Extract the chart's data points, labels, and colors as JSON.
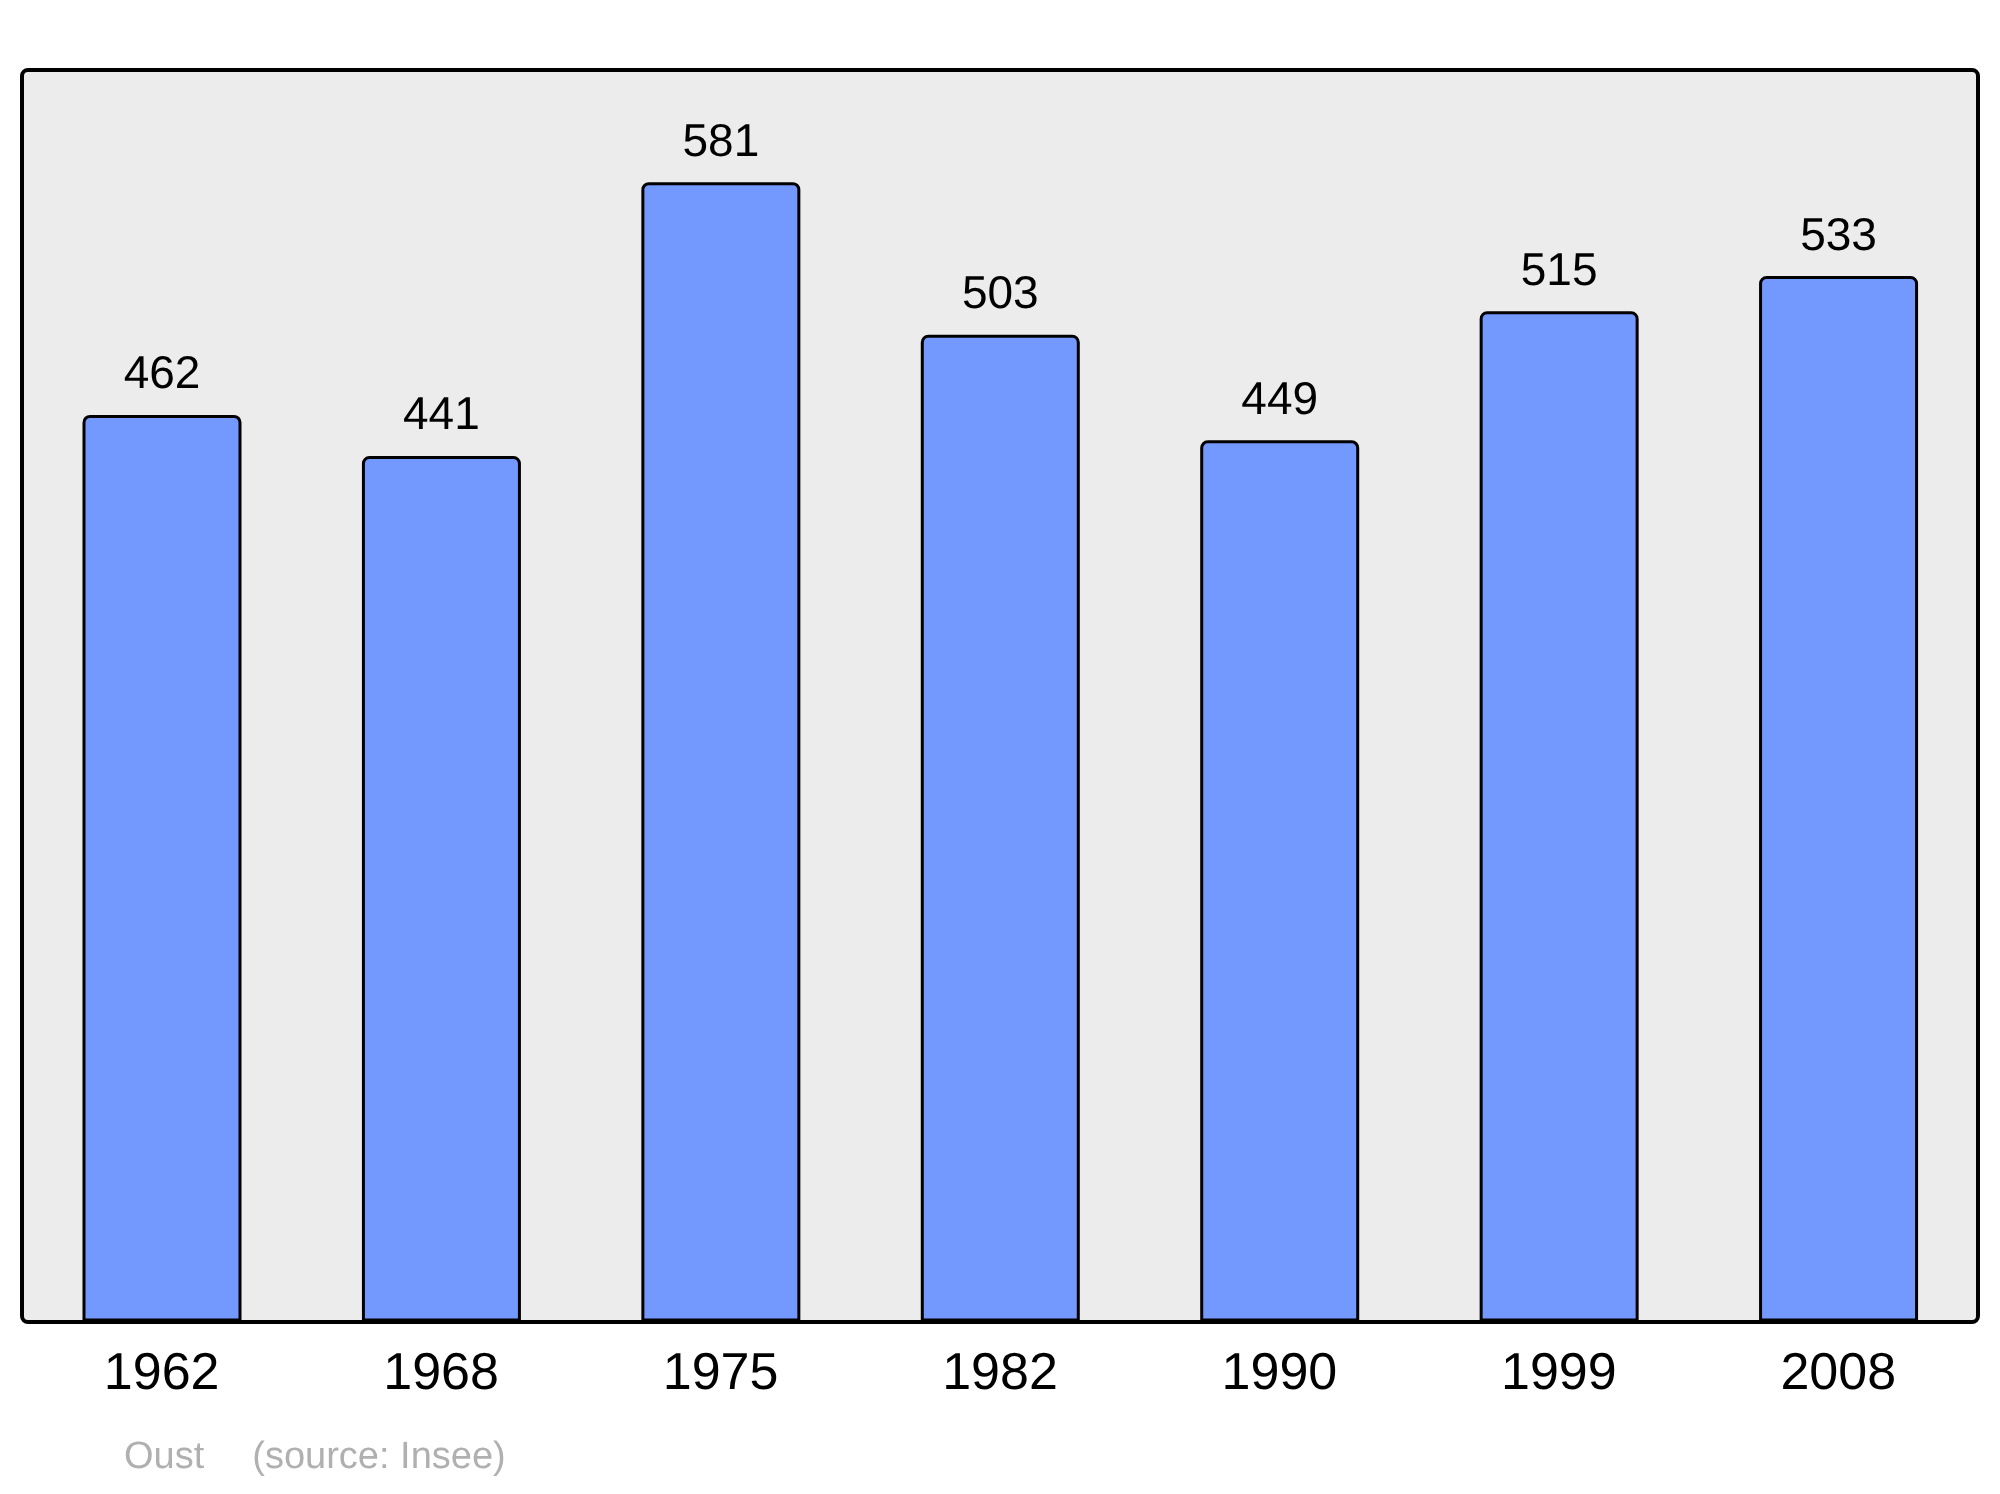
{
  "chart_data": {
    "type": "bar",
    "categories": [
      "1962",
      "1968",
      "1975",
      "1982",
      "1990",
      "1999",
      "2008"
    ],
    "values": [
      462,
      441,
      581,
      503,
      449,
      515,
      533
    ],
    "color": "#7399ff",
    "data_labels": true,
    "annotations": [
      "Oust",
      "(source: Insee)"
    ]
  }
}
